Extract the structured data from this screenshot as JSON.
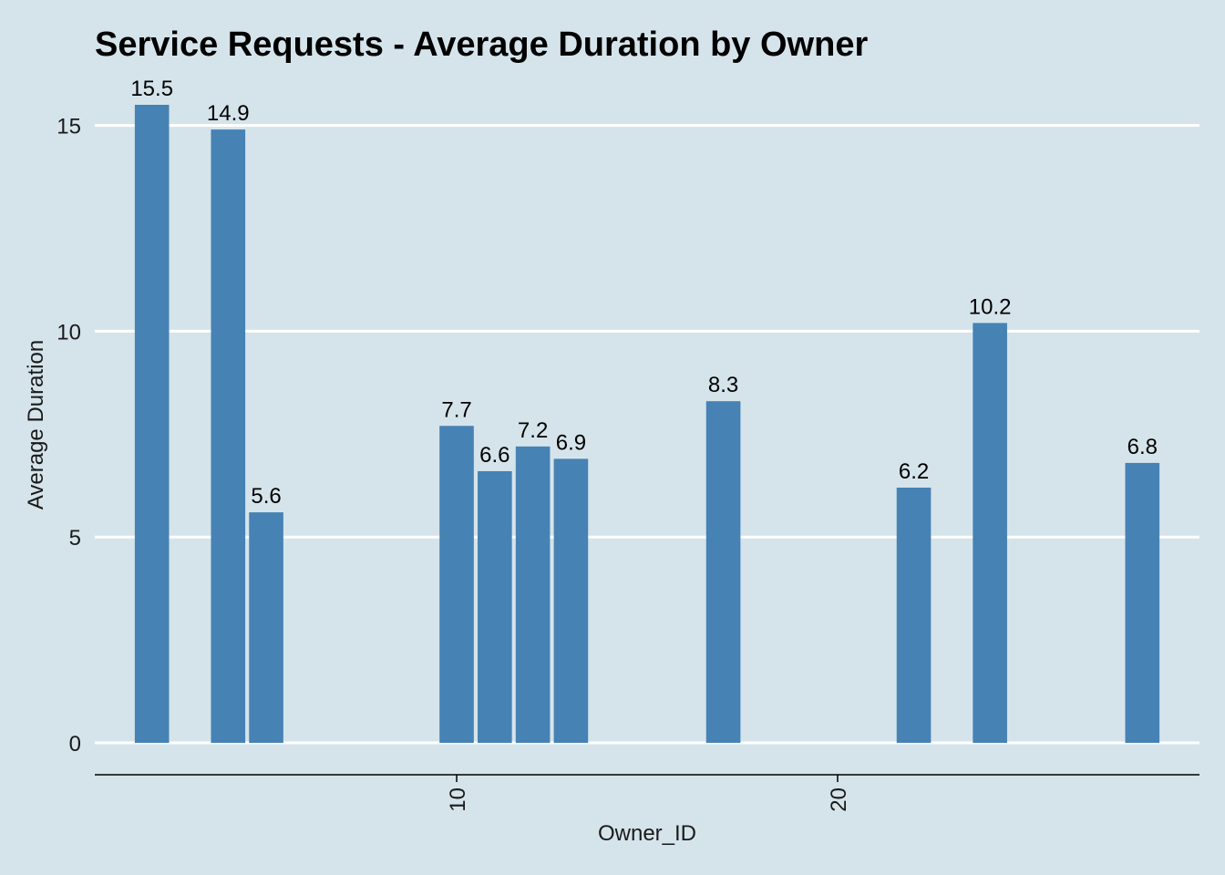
{
  "chart_data": {
    "type": "bar",
    "title": "Service Requests - Average Duration by Owner",
    "xlabel": "Owner_ID",
    "ylabel": "Average Duration",
    "x": [
      2,
      4,
      5,
      10,
      11,
      12,
      13,
      17,
      22,
      24,
      28
    ],
    "values": [
      15.5,
      14.9,
      5.6,
      7.7,
      6.6,
      7.2,
      6.9,
      8.3,
      6.2,
      10.2,
      6.8
    ],
    "data_labels": [
      "15.5",
      "14.9",
      "5.6",
      "7.7",
      "6.6",
      "7.2",
      "6.9",
      "8.3",
      "6.2",
      "10.2",
      "6.8"
    ],
    "xlim": [
      0.5,
      29.5
    ],
    "ylim": [
      -0.775,
      16.275
    ],
    "xticks": [
      10,
      20
    ],
    "xtick_labels": [
      "10",
      "20"
    ],
    "yticks": [
      0,
      5,
      10,
      15
    ],
    "ytick_labels": [
      "0",
      "5",
      "10",
      "15"
    ],
    "grid": "horizontal major lines",
    "legend": "none",
    "bar_color": "#4682b4",
    "gridline_color": "#ffffff",
    "background_color": "#d5e4eb",
    "axis_line_color": "#000000"
  }
}
